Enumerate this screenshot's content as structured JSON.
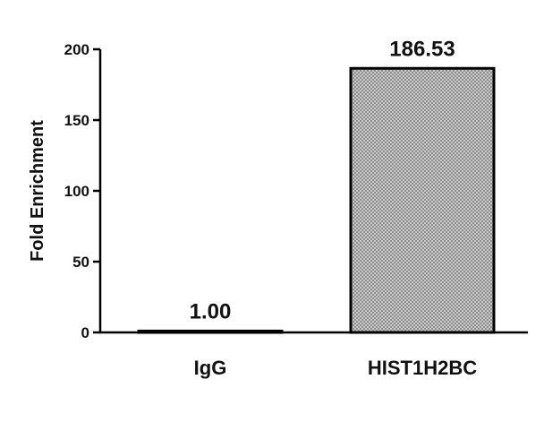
{
  "chart_data": {
    "type": "bar",
    "categories": [
      "IgG",
      "HIST1H2BC"
    ],
    "values": [
      1.0,
      186.53
    ],
    "data_labels": [
      "1.00",
      "186.53"
    ],
    "title": "",
    "xlabel": "",
    "ylabel": "Fold Enrichment",
    "ylim": [
      0,
      200
    ],
    "yticks": [
      0,
      50,
      100,
      150,
      200
    ],
    "ytick_labels": [
      "0",
      "50",
      "100",
      "150",
      "200"
    ],
    "grid": false,
    "legend": "none",
    "bar_fill": "#b8b8b8",
    "bar_pattern": "crosshatch",
    "bar_stroke": "#000000"
  }
}
